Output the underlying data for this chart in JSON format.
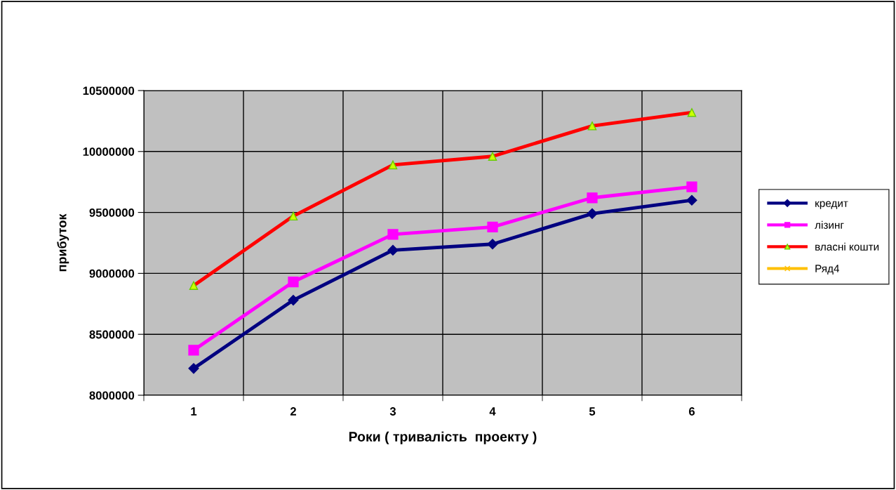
{
  "chart_data": {
    "type": "line",
    "xlabel": "Роки ( тривалість  проекту )",
    "ylabel": "прибуток",
    "categories": [
      "1",
      "2",
      "3",
      "4",
      "5",
      "6"
    ],
    "series": [
      {
        "name": "кредит",
        "color": "#000080",
        "marker": "diamond",
        "values": [
          8220000,
          8780000,
          9190000,
          9240000,
          9490000,
          9600000
        ]
      },
      {
        "name": "лізинг",
        "color": "#ff00ff",
        "marker": "square",
        "values": [
          8370000,
          8930000,
          9320000,
          9380000,
          9620000,
          9710000
        ]
      },
      {
        "name": "власні кошти",
        "color": "#ff0000",
        "marker": "triangle",
        "values": [
          8900000,
          9470000,
          9890000,
          9960000,
          10210000,
          10320000
        ]
      },
      {
        "name": "Ряд4",
        "color": "#ffc000",
        "marker": "cross",
        "values": [
          null,
          null,
          null,
          null,
          null,
          null
        ]
      }
    ],
    "ylim": [
      8000000,
      10500000
    ],
    "yticks": [
      8000000,
      8500000,
      9000000,
      9500000,
      10000000,
      10500000
    ],
    "grid": true,
    "legend": "right"
  }
}
